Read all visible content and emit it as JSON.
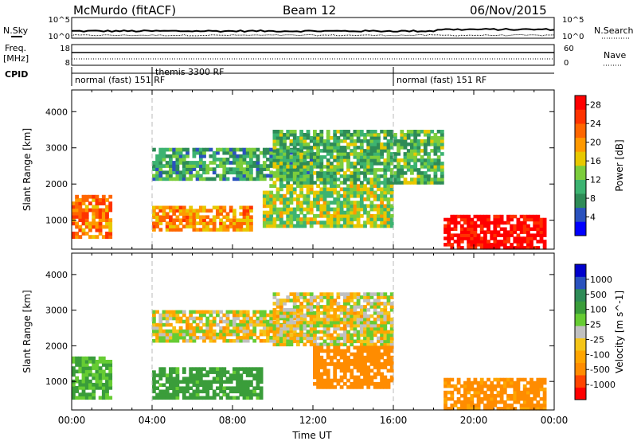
{
  "header": {
    "station": "McMurdo (fitACF)",
    "beam": "Beam 12",
    "date": "06/Nov/2015"
  },
  "aux_panel": {
    "left_labels": {
      "nsky": "N.Sky",
      "freq": "Freq.",
      "freq_unit": "[MHz]",
      "cpid": "CPID"
    },
    "right_labels": {
      "nsearch": "N.Search",
      "nave": "Nave"
    },
    "sky_ticks": {
      "top": "10^5",
      "bottom": "10^0"
    },
    "freq_ticks": {
      "top": "18",
      "bottom": "8"
    },
    "nave_ticks": {
      "top": "60",
      "bottom": "0"
    },
    "cpid_segments": [
      {
        "label": "normal (fast) 151 RF",
        "start_hour": 0
      },
      {
        "label": "themis 3300 RF",
        "start_hour": 4
      },
      {
        "label": "normal (fast) 151 RF",
        "start_hour": 16
      }
    ]
  },
  "colors": {
    "power_scale": [
      "#0000ff",
      "#2a52be",
      "#2e8b57",
      "#3cb371",
      "#7ccd3c",
      "#e8c800",
      "#ff9900",
      "#ff6600",
      "#ff3300",
      "#ff0000"
    ],
    "velocity_scale": [
      "#ff0000",
      "#ff4500",
      "#ff8c00",
      "#ffa500",
      "#f5c518",
      "#c0c0c0",
      "#66cc33",
      "#3a9d3a",
      "#2e8b57",
      "#2a52be",
      "#0000cc"
    ]
  },
  "chart_data": [
    {
      "type": "heatmap",
      "name": "power",
      "ylabel": "Slant Range [km]",
      "xlabel": "Time UT",
      "x_ticks": [
        "00:00",
        "04:00",
        "08:00",
        "12:00",
        "16:00",
        "20:00",
        "00:00"
      ],
      "xlim_hours": [
        0,
        24
      ],
      "y_ticks": [
        1000,
        2000,
        3000,
        4000
      ],
      "ylim": [
        200,
        4600
      ],
      "colorbar": {
        "label": "Power [dB]",
        "ticks": [
          4,
          8,
          12,
          16,
          20,
          24,
          28
        ],
        "range": [
          0,
          30
        ]
      },
      "mode_change_hours": [
        4,
        16
      ],
      "regions": [
        {
          "t0": 0.0,
          "t1": 2.0,
          "r0": 500,
          "r1": 1700,
          "value": 22
        },
        {
          "t0": 4.0,
          "t1": 9.0,
          "r0": 700,
          "r1": 1400,
          "value": 20
        },
        {
          "t0": 4.0,
          "t1": 12.0,
          "r0": 2100,
          "r1": 3000,
          "value": 10
        },
        {
          "t0": 9.5,
          "t1": 16.0,
          "r0": 800,
          "r1": 2000,
          "value": 14
        },
        {
          "t0": 10.0,
          "t1": 18.5,
          "r0": 2000,
          "r1": 3500,
          "value": 11
        },
        {
          "t0": 18.5,
          "t1": 23.6,
          "r0": 200,
          "r1": 1150,
          "value": 29
        }
      ]
    },
    {
      "type": "heatmap",
      "name": "velocity",
      "ylabel": "Slant Range [km]",
      "xlabel": "Time UT",
      "x_ticks": [
        "00:00",
        "04:00",
        "08:00",
        "12:00",
        "16:00",
        "20:00",
        "00:00"
      ],
      "xlim_hours": [
        0,
        24
      ],
      "y_ticks": [
        1000,
        2000,
        3000,
        4000
      ],
      "ylim": [
        200,
        4600
      ],
      "colorbar": {
        "label": "Velocity [m s^-1]",
        "ticks": [
          1000,
          500,
          100,
          25,
          -25,
          -100,
          -500,
          -1000
        ]
      },
      "mode_change_hours": [
        4,
        16
      ],
      "regions": [
        {
          "t0": 0.0,
          "t1": 2.0,
          "r0": 500,
          "r1": 1700,
          "value": 200
        },
        {
          "t0": 4.0,
          "t1": 9.5,
          "r0": 500,
          "r1": 1400,
          "value": 300
        },
        {
          "t0": 4.0,
          "t1": 12.0,
          "r0": 2100,
          "r1": 3000,
          "value": 0
        },
        {
          "t0": 10.0,
          "t1": 16.0,
          "r0": 2000,
          "r1": 3500,
          "value": 0
        },
        {
          "t0": 12.0,
          "t1": 16.0,
          "r0": 800,
          "r1": 2000,
          "value": -300
        },
        {
          "t0": 18.5,
          "t1": 23.6,
          "r0": 200,
          "r1": 1100,
          "value": -200
        }
      ]
    }
  ]
}
